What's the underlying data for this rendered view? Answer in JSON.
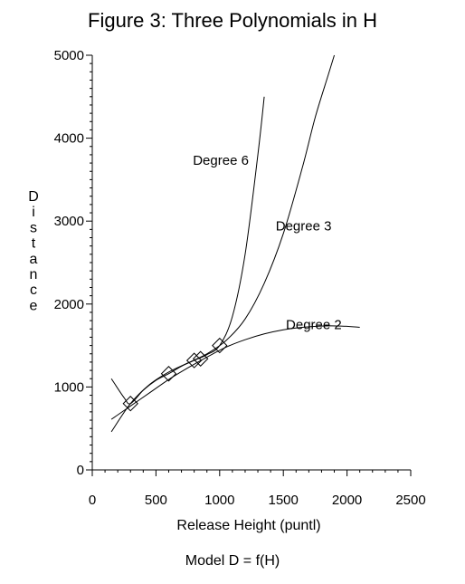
{
  "chart_data": {
    "type": "line",
    "title": "Figure 3: Three Polynomials in H",
    "xlabel": "Release Height (puntl)",
    "ylabel": "Distance",
    "footnote": "Model D = f(H)",
    "xlim": [
      0,
      2500
    ],
    "ylim": [
      0,
      5000
    ],
    "xticks": [
      0,
      500,
      1000,
      1500,
      2000,
      2500
    ],
    "yticks": [
      0,
      1000,
      2000,
      3000,
      4000,
      5000
    ],
    "points": [
      {
        "x": 300,
        "y": 800
      },
      {
        "x": 600,
        "y": 1160
      },
      {
        "x": 800,
        "y": 1320
      },
      {
        "x": 850,
        "y": 1340
      },
      {
        "x": 1000,
        "y": 1500
      }
    ],
    "series": [
      {
        "name": "Degree 2",
        "x": [
          150,
          300,
          450,
          600,
          750,
          900,
          1050,
          1200,
          1350,
          1500,
          1650,
          1800,
          1950,
          2100
        ],
        "y": [
          610,
          770,
          930,
          1090,
          1230,
          1360,
          1480,
          1570,
          1640,
          1690,
          1720,
          1735,
          1735,
          1720
        ]
      },
      {
        "name": "Degree 3",
        "x": [
          150,
          300,
          450,
          600,
          750,
          900,
          1050,
          1200,
          1350,
          1500,
          1650,
          1750,
          1850,
          1900
        ],
        "y": [
          460,
          800,
          1030,
          1180,
          1290,
          1400,
          1560,
          1820,
          2250,
          2850,
          3650,
          4250,
          4750,
          5000
        ]
      },
      {
        "name": "Degree 6",
        "x": [
          150,
          250,
          300,
          400,
          500,
          600,
          700,
          800,
          900,
          1000,
          1100,
          1200,
          1300,
          1350
        ],
        "y": [
          1100,
          870,
          800,
          960,
          1080,
          1160,
          1250,
          1320,
          1390,
          1500,
          1850,
          2600,
          3800,
          4500
        ]
      }
    ],
    "labels": [
      {
        "text": "Degree 6",
        "x": 790,
        "y": 3680
      },
      {
        "text": "Degree 3",
        "x": 1440,
        "y": 2890
      },
      {
        "text": "Degree 2",
        "x": 1520,
        "y": 1700
      }
    ]
  }
}
